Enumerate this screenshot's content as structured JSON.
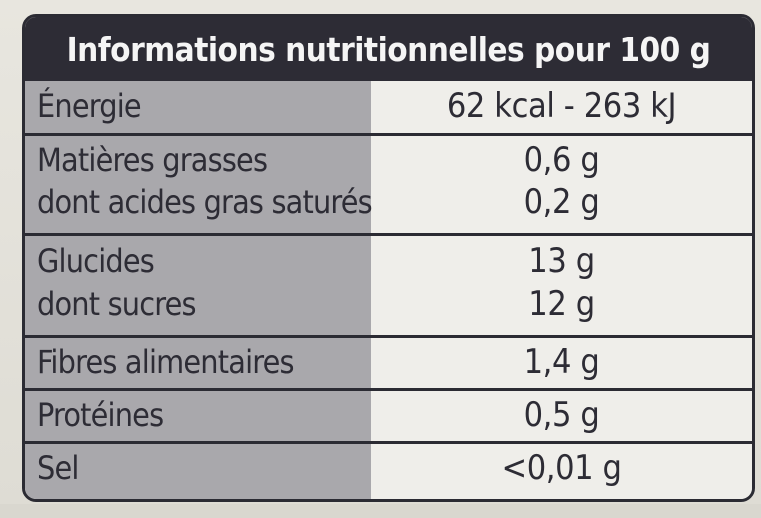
{
  "header": {
    "title": "Informations nutritionnelles pour 100 g"
  },
  "rows": [
    {
      "name": "Énergie",
      "value": "62 kcal - 263 kJ"
    },
    {
      "name": "Matières grasses",
      "value": "0,6 g"
    },
    {
      "name": "dont acides gras saturés",
      "value": "0,2 g"
    },
    {
      "name": "Glucides",
      "value": "13 g"
    },
    {
      "name": "dont sucres",
      "value": "12 g"
    },
    {
      "name": "Fibres alimentaires",
      "value": "1,4 g"
    },
    {
      "name": "Protéines",
      "value": "0,5 g"
    },
    {
      "name": "Sel",
      "value": "<0,01 g"
    }
  ],
  "colors": {
    "header_bg": "#2d2c35",
    "header_text": "#f5f5f5",
    "label_col_bg": "#a9a8ac",
    "value_col_bg": "#efeeea",
    "border": "#2b2b33"
  }
}
